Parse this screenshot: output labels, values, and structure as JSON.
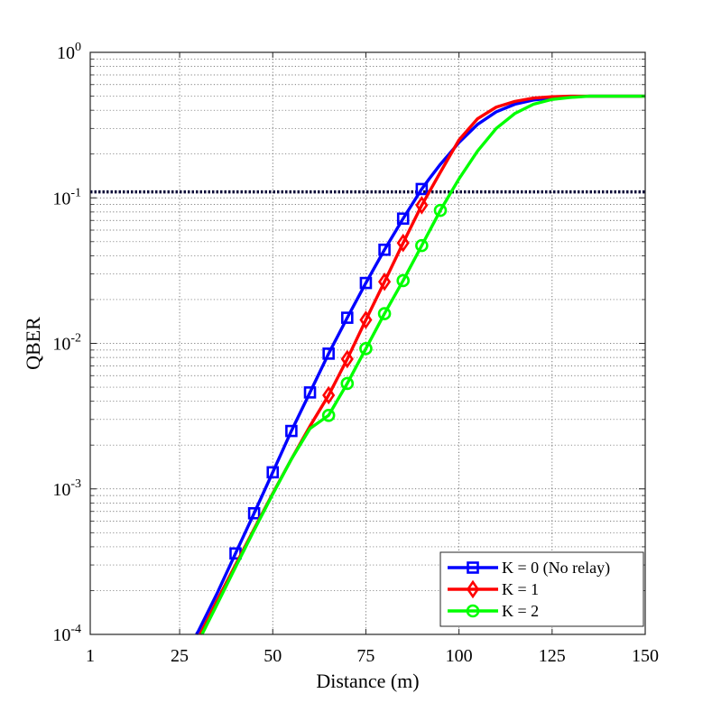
{
  "chart_data": {
    "type": "line",
    "title": "",
    "xlabel": "Distance (m)",
    "ylabel": "QBER",
    "xscale": "linear",
    "yscale": "log",
    "xlim": [
      1,
      150
    ],
    "ylim": [
      0.0001,
      1
    ],
    "grid": true,
    "x_ticks": [
      {
        "value": 1,
        "label": "1"
      },
      {
        "value": 25,
        "label": "25"
      },
      {
        "value": 50,
        "label": "50"
      },
      {
        "value": 75,
        "label": "75"
      },
      {
        "value": 100,
        "label": "100"
      },
      {
        "value": 125,
        "label": "125"
      },
      {
        "value": 150,
        "label": "150"
      }
    ],
    "y_ticks": [
      {
        "value": 0.0001,
        "base": "10",
        "exp": "-4"
      },
      {
        "value": 0.001,
        "base": "10",
        "exp": "-3"
      },
      {
        "value": 0.01,
        "base": "10",
        "exp": "-2"
      },
      {
        "value": 0.1,
        "base": "10",
        "exp": "-1"
      },
      {
        "value": 1,
        "base": "10",
        "exp": "0"
      }
    ],
    "threshold": {
      "value": 0.11,
      "color": "#0d0d3a",
      "style": "dotted"
    },
    "legend_position": "bottom-right",
    "series": [
      {
        "name": "K = 0 (No relay)",
        "color": "#0000ff",
        "marker": "square",
        "x": [
          29.5,
          30,
          35,
          40,
          45,
          50,
          55,
          60,
          65,
          70,
          75,
          80,
          85,
          90,
          92,
          95,
          100,
          105,
          110,
          115,
          120,
          125,
          130,
          135,
          140,
          145,
          150
        ],
        "y": [
          0.0001,
          0.000105,
          0.00019,
          0.00036,
          0.00068,
          0.0013,
          0.0025,
          0.0046,
          0.0085,
          0.015,
          0.026,
          0.044,
          0.072,
          0.115,
          0.135,
          0.17,
          0.24,
          0.32,
          0.39,
          0.44,
          0.47,
          0.485,
          0.495,
          0.5,
          0.5,
          0.5,
          0.5
        ],
        "marker_x": [
          40,
          45,
          50,
          55,
          60,
          65,
          70,
          75,
          80,
          85,
          90
        ]
      },
      {
        "name": "K = 1",
        "color": "#ff0000",
        "marker": "diamond",
        "x": [
          30.5,
          35,
          40,
          45,
          50,
          55,
          60,
          65,
          70,
          75,
          80,
          85,
          90,
          95,
          100,
          105,
          110,
          115,
          120,
          125,
          130,
          135,
          140,
          145,
          150
        ],
        "y": [
          0.0001,
          0.00017,
          0.0003,
          0.00053,
          0.00093,
          0.0016,
          0.0027,
          0.0044,
          0.0078,
          0.0145,
          0.0265,
          0.049,
          0.089,
          0.15,
          0.25,
          0.35,
          0.42,
          0.46,
          0.485,
          0.495,
          0.5,
          0.5,
          0.5,
          0.5,
          0.5
        ],
        "marker_x": [
          65,
          70,
          75,
          80,
          85,
          90
        ]
      },
      {
        "name": "K = 2",
        "color": "#00ff00",
        "marker": "circle",
        "x": [
          31,
          35,
          40,
          45,
          50,
          55,
          60,
          65,
          70,
          75,
          80,
          85,
          90,
          95,
          100,
          105,
          110,
          115,
          120,
          125,
          130,
          135,
          140,
          145,
          150
        ],
        "y": [
          0.0001,
          0.00016,
          0.00029,
          0.00052,
          0.00092,
          0.0016,
          0.0026,
          0.0032,
          0.0053,
          0.0092,
          0.016,
          0.027,
          0.047,
          0.082,
          0.135,
          0.21,
          0.3,
          0.38,
          0.44,
          0.475,
          0.49,
          0.5,
          0.5,
          0.5,
          0.5
        ],
        "marker_x": [
          65,
          70,
          75,
          80,
          85,
          90,
          95
        ]
      }
    ]
  }
}
